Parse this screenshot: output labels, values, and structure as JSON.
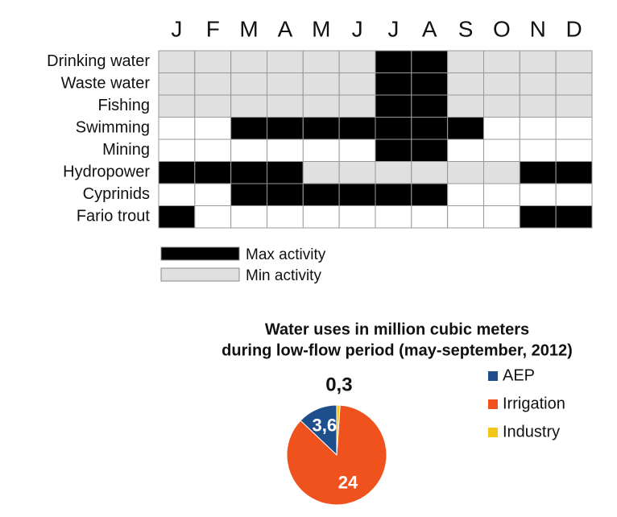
{
  "chart_data": [
    {
      "type": "heatmap",
      "columns": [
        "J",
        "F",
        "M",
        "A",
        "M",
        "J",
        "J",
        "A",
        "S",
        "O",
        "N",
        "D"
      ],
      "rows": [
        "Drinking water",
        "Waste water",
        "Fishing",
        "Swimming",
        "Mining",
        "Hydropower",
        "Cyprinids",
        "Fario trout"
      ],
      "levels": [
        {
          "name": "Max activity",
          "color": "#000000"
        },
        {
          "name": "Min activity",
          "color": "#e0e0e0"
        }
      ],
      "cells": [
        [
          1,
          1,
          1,
          1,
          1,
          1,
          0,
          0,
          1,
          1,
          1,
          1
        ],
        [
          1,
          1,
          1,
          1,
          1,
          1,
          0,
          0,
          1,
          1,
          1,
          1
        ],
        [
          1,
          1,
          1,
          1,
          1,
          1,
          0,
          0,
          1,
          1,
          1,
          1
        ],
        [
          null,
          null,
          0,
          0,
          0,
          0,
          0,
          0,
          0,
          null,
          null,
          null
        ],
        [
          null,
          null,
          null,
          null,
          null,
          null,
          0,
          0,
          null,
          null,
          null,
          null
        ],
        [
          0,
          0,
          0,
          0,
          1,
          1,
          1,
          1,
          1,
          1,
          0,
          0
        ],
        [
          null,
          null,
          0,
          0,
          0,
          0,
          0,
          0,
          null,
          null,
          null,
          null
        ],
        [
          0,
          null,
          null,
          null,
          null,
          null,
          null,
          null,
          null,
          null,
          0,
          0
        ]
      ]
    },
    {
      "type": "pie",
      "title": [
        "Water uses in million cubic meters",
        "during low-flow period (may-september, 2012)"
      ],
      "categories": [
        "AEP",
        "Irrigation",
        "Industry"
      ],
      "values": [
        3.6,
        24,
        0.3
      ],
      "value_labels": [
        "3,6",
        "24",
        "0,3"
      ],
      "colors": [
        "#1f4e8c",
        "#f0521e",
        "#f5c518"
      ]
    }
  ]
}
